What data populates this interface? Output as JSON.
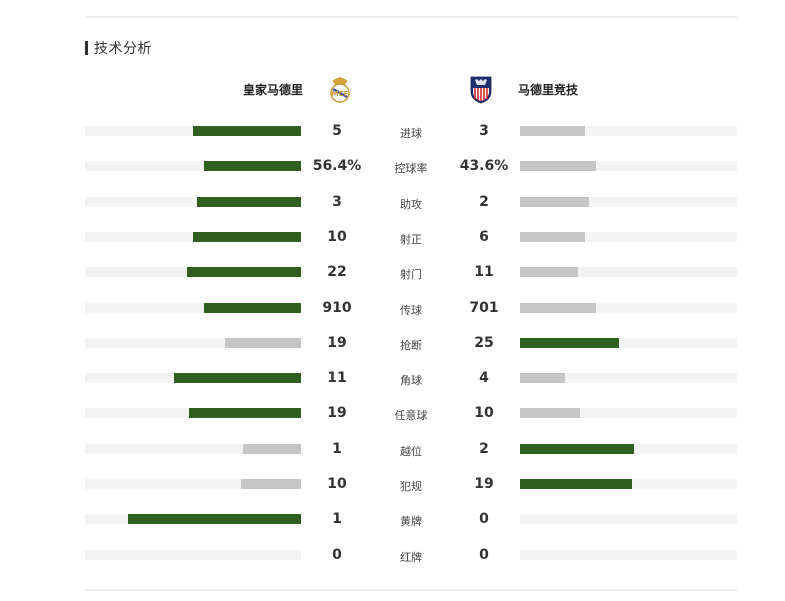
{
  "section_title": "技术分析",
  "home": {
    "name": "皇家马德里",
    "crest_icon": "real-madrid-crest-icon"
  },
  "away": {
    "name": "马德里竞技",
    "crest_icon": "atletico-madrid-crest-icon"
  },
  "colors": {
    "win_bar": "#2f5f1f",
    "lose_bar": "#c6c6c6",
    "track": "#f3f3f3"
  },
  "stats": [
    {
      "label": "进球",
      "home": "5",
      "away": "3",
      "home_share": 0.5,
      "away_share": 0.3,
      "home_leads": true
    },
    {
      "label": "控球率",
      "home": "56.4%",
      "away": "43.6%",
      "home_share": 0.45,
      "away_share": 0.35,
      "home_leads": true
    },
    {
      "label": "助攻",
      "home": "3",
      "away": "2",
      "home_share": 0.48,
      "away_share": 0.32,
      "home_leads": true
    },
    {
      "label": "射正",
      "home": "10",
      "away": "6",
      "home_share": 0.5,
      "away_share": 0.3,
      "home_leads": true
    },
    {
      "label": "射门",
      "home": "22",
      "away": "11",
      "home_share": 0.53,
      "away_share": 0.27,
      "home_leads": true
    },
    {
      "label": "传球",
      "home": "910",
      "away": "701",
      "home_share": 0.45,
      "away_share": 0.35,
      "home_leads": true
    },
    {
      "label": "抢断",
      "home": "19",
      "away": "25",
      "home_share": 0.35,
      "away_share": 0.46,
      "home_leads": false
    },
    {
      "label": "角球",
      "home": "11",
      "away": "4",
      "home_share": 0.59,
      "away_share": 0.21,
      "home_leads": true
    },
    {
      "label": "任意球",
      "home": "19",
      "away": "10",
      "home_share": 0.52,
      "away_share": 0.28,
      "home_leads": true
    },
    {
      "label": "越位",
      "home": "1",
      "away": "2",
      "home_share": 0.27,
      "away_share": 0.53,
      "home_leads": false
    },
    {
      "label": "犯规",
      "home": "10",
      "away": "19",
      "home_share": 0.28,
      "away_share": 0.52,
      "home_leads": false
    },
    {
      "label": "黄牌",
      "home": "1",
      "away": "0",
      "home_share": 0.8,
      "away_share": 0.0,
      "home_leads": true
    },
    {
      "label": "红牌",
      "home": "0",
      "away": "0",
      "home_share": 0.0,
      "away_share": 0.0,
      "home_leads": false
    }
  ]
}
